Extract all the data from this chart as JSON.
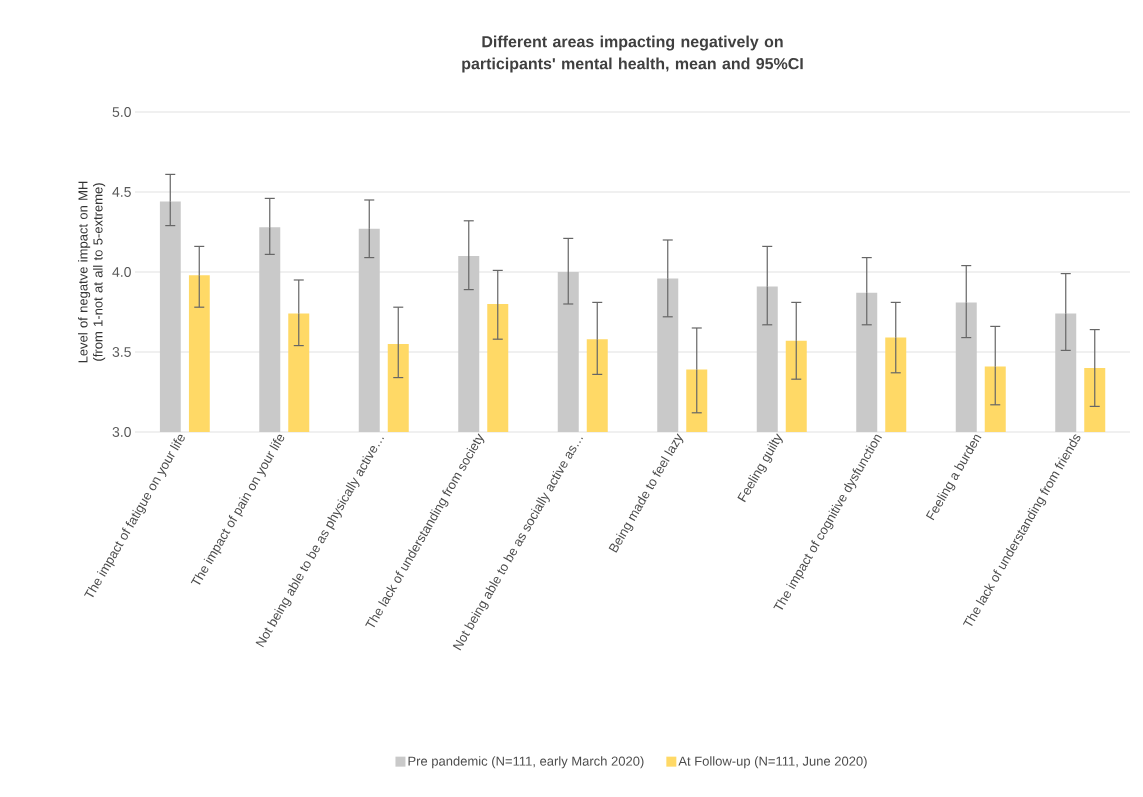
{
  "chart_data": {
    "type": "bar",
    "title": "Different areas impacting negatively on participants' mental health, mean and 95%CI",
    "ylabel": "Level of negatve impact on MH (from 1-not at all to 5-extreme)",
    "categories": [
      "The impact of fatigue on your life",
      "The impact of pain on your life",
      "Not being able to be as physically active…",
      "The lack of understanding from society",
      "Not being able to be as socially active as…",
      "Being made to feel lazy",
      "Feeling guilty",
      "The impact of cognitive dysfunction",
      "Feeling a burden",
      "The lack of understanding from friends"
    ],
    "series": [
      {
        "name": "Pre pandemic (N=111, early March 2020)",
        "color": "#c9c9c9",
        "values": [
          4.44,
          4.28,
          4.27,
          4.1,
          4.0,
          3.96,
          3.91,
          3.87,
          3.81,
          3.74
        ],
        "errors": [
          [
            4.29,
            4.61
          ],
          [
            4.11,
            4.46
          ],
          [
            4.09,
            4.45
          ],
          [
            3.89,
            4.32
          ],
          [
            3.8,
            4.21
          ],
          [
            3.72,
            4.2
          ],
          [
            3.67,
            4.16
          ],
          [
            3.67,
            4.09
          ],
          [
            3.59,
            4.04
          ],
          [
            3.51,
            3.99
          ]
        ]
      },
      {
        "name": "At Follow-up (N=111, June 2020)",
        "color": "#ffd966",
        "values": [
          3.98,
          3.74,
          3.55,
          3.8,
          3.58,
          3.39,
          3.57,
          3.59,
          3.41,
          3.4
        ],
        "errors": [
          [
            3.78,
            4.16
          ],
          [
            3.54,
            3.95
          ],
          [
            3.34,
            3.78
          ],
          [
            3.58,
            4.01
          ],
          [
            3.36,
            3.81
          ],
          [
            3.12,
            3.65
          ],
          [
            3.33,
            3.81
          ],
          [
            3.37,
            3.81
          ],
          [
            3.17,
            3.66
          ],
          [
            3.16,
            3.64
          ]
        ]
      }
    ],
    "ylim": [
      3,
      5
    ],
    "yticks": [
      {
        "value": 3,
        "label": "3.0"
      },
      {
        "value": 3.5,
        "label": "3.5"
      },
      {
        "value": 4,
        "label": "4.0"
      },
      {
        "value": 4.5,
        "label": "4.5"
      },
      {
        "value": 5,
        "label": "5.0"
      }
    ],
    "grid": "y",
    "legend": "bottom"
  }
}
